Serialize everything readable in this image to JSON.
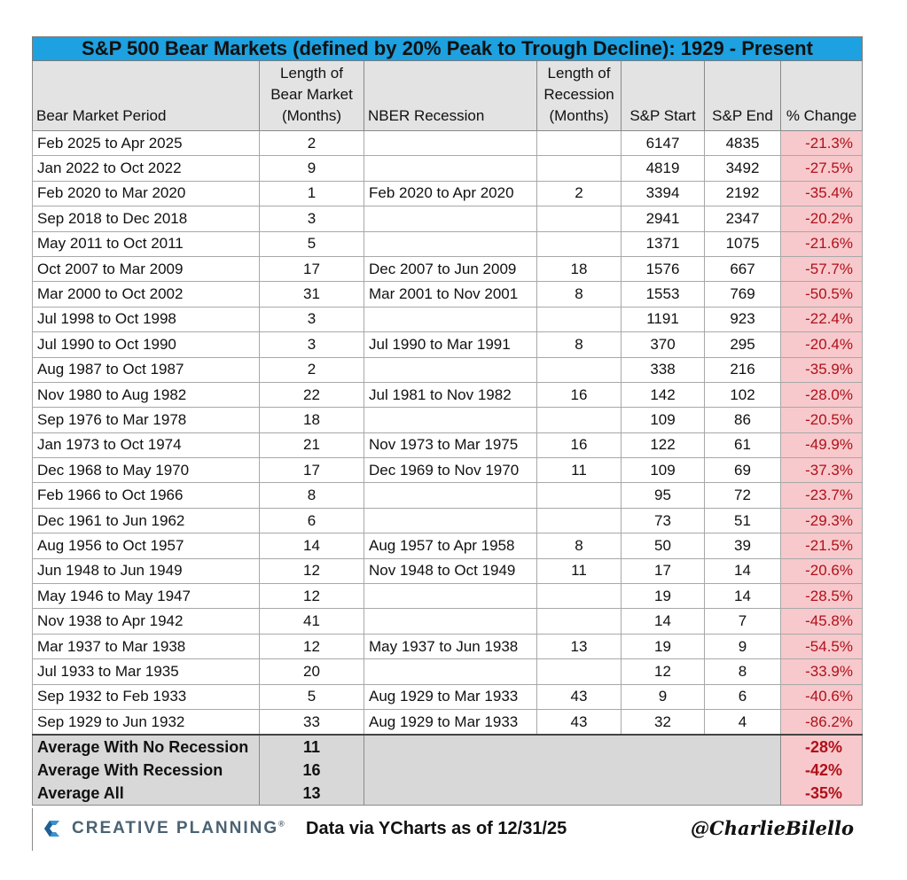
{
  "title": "S&P 500 Bear Markets (defined by 20% Peak to Trough Decline): 1929 - Present",
  "headers": {
    "period": "Bear Market Period",
    "length_l1": "Length of",
    "length_l2": "Bear Market",
    "length_l3": "(Months)",
    "nber": "NBER Recession",
    "rec_l1": "Length of",
    "rec_l2": "Recession",
    "rec_l3": "(Months)",
    "start": "S&P Start",
    "end": "S&P End",
    "change": "% Change"
  },
  "rows": [
    {
      "period": "Feb 2025 to Apr 2025",
      "length": "2",
      "recession": "",
      "rec_length": "",
      "start": "6147",
      "end": "4835",
      "change": "-21.3%"
    },
    {
      "period": "Jan 2022 to Oct 2022",
      "length": "9",
      "recession": "",
      "rec_length": "",
      "start": "4819",
      "end": "3492",
      "change": "-27.5%"
    },
    {
      "period": "Feb 2020 to Mar 2020",
      "length": "1",
      "recession": "Feb 2020 to Apr 2020",
      "rec_length": "2",
      "start": "3394",
      "end": "2192",
      "change": "-35.4%"
    },
    {
      "period": "Sep 2018 to Dec 2018",
      "length": "3",
      "recession": "",
      "rec_length": "",
      "start": "2941",
      "end": "2347",
      "change": "-20.2%"
    },
    {
      "period": "May 2011 to Oct 2011",
      "length": "5",
      "recession": "",
      "rec_length": "",
      "start": "1371",
      "end": "1075",
      "change": "-21.6%"
    },
    {
      "period": "Oct 2007 to Mar 2009",
      "length": "17",
      "recession": "Dec 2007 to Jun 2009",
      "rec_length": "18",
      "start": "1576",
      "end": "667",
      "change": "-57.7%"
    },
    {
      "period": "Mar 2000 to Oct 2002",
      "length": "31",
      "recession": "Mar 2001 to Nov 2001",
      "rec_length": "8",
      "start": "1553",
      "end": "769",
      "change": "-50.5%"
    },
    {
      "period": "Jul 1998 to Oct 1998",
      "length": "3",
      "recession": "",
      "rec_length": "",
      "start": "1191",
      "end": "923",
      "change": "-22.4%"
    },
    {
      "period": "Jul 1990 to Oct 1990",
      "length": "3",
      "recession": "Jul 1990 to Mar 1991",
      "rec_length": "8",
      "start": "370",
      "end": "295",
      "change": "-20.4%"
    },
    {
      "period": "Aug 1987 to Oct 1987",
      "length": "2",
      "recession": "",
      "rec_length": "",
      "start": "338",
      "end": "216",
      "change": "-35.9%"
    },
    {
      "period": "Nov 1980 to Aug 1982",
      "length": "22",
      "recession": "Jul 1981 to Nov 1982",
      "rec_length": "16",
      "start": "142",
      "end": "102",
      "change": "-28.0%"
    },
    {
      "period": "Sep 1976 to Mar 1978",
      "length": "18",
      "recession": "",
      "rec_length": "",
      "start": "109",
      "end": "86",
      "change": "-20.5%"
    },
    {
      "period": "Jan 1973 to Oct 1974",
      "length": "21",
      "recession": "Nov 1973 to Mar 1975",
      "rec_length": "16",
      "start": "122",
      "end": "61",
      "change": "-49.9%"
    },
    {
      "period": "Dec 1968 to May 1970",
      "length": "17",
      "recession": "Dec 1969 to Nov 1970",
      "rec_length": "11",
      "start": "109",
      "end": "69",
      "change": "-37.3%"
    },
    {
      "period": "Feb 1966 to Oct 1966",
      "length": "8",
      "recession": "",
      "rec_length": "",
      "start": "95",
      "end": "72",
      "change": "-23.7%"
    },
    {
      "period": "Dec 1961 to Jun 1962",
      "length": "6",
      "recession": "",
      "rec_length": "",
      "start": "73",
      "end": "51",
      "change": "-29.3%"
    },
    {
      "period": "Aug 1956 to Oct 1957",
      "length": "14",
      "recession": "Aug 1957 to Apr 1958",
      "rec_length": "8",
      "start": "50",
      "end": "39",
      "change": "-21.5%"
    },
    {
      "period": "Jun 1948 to Jun 1949",
      "length": "12",
      "recession": "Nov 1948 to Oct 1949",
      "rec_length": "11",
      "start": "17",
      "end": "14",
      "change": "-20.6%"
    },
    {
      "period": "May 1946 to May 1947",
      "length": "12",
      "recession": "",
      "rec_length": "",
      "start": "19",
      "end": "14",
      "change": "-28.5%"
    },
    {
      "period": "Nov 1938 to Apr 1942",
      "length": "41",
      "recession": "",
      "rec_length": "",
      "start": "14",
      "end": "7",
      "change": "-45.8%"
    },
    {
      "period": "Mar 1937 to Mar 1938",
      "length": "12",
      "recession": "May 1937 to Jun 1938",
      "rec_length": "13",
      "start": "19",
      "end": "9",
      "change": "-54.5%"
    },
    {
      "period": "Jul 1933 to Mar 1935",
      "length": "20",
      "recession": "",
      "rec_length": "",
      "start": "12",
      "end": "8",
      "change": "-33.9%"
    },
    {
      "period": "Sep 1932 to Feb 1933",
      "length": "5",
      "recession": "Aug 1929 to Mar 1933",
      "rec_length": "43",
      "start": "9",
      "end": "6",
      "change": "-40.6%"
    },
    {
      "period": "Sep 1929 to Jun 1932",
      "length": "33",
      "recession": "Aug 1929 to Mar 1933",
      "rec_length": "43",
      "start": "32",
      "end": "4",
      "change": "-86.2%"
    }
  ],
  "averages": [
    {
      "label": "Average With No Recession",
      "length": "11",
      "change": "-28%"
    },
    {
      "label": "Average With Recession",
      "length": "16",
      "change": "-42%"
    },
    {
      "label": "Average All",
      "length": "13",
      "change": "-35%"
    }
  ],
  "footer": {
    "logo_text": "CREATIVE PLANNING",
    "logo_tm": "®",
    "source": "Data via YCharts as of 12/31/25",
    "handle": "@CharlieBilello"
  },
  "colors": {
    "title_bg": "#1da1e0",
    "header_bg": "#e3e3e3",
    "negative_bg": "#f7c9cc",
    "negative_text": "#b0101a",
    "logo_color": "#4b6273"
  }
}
